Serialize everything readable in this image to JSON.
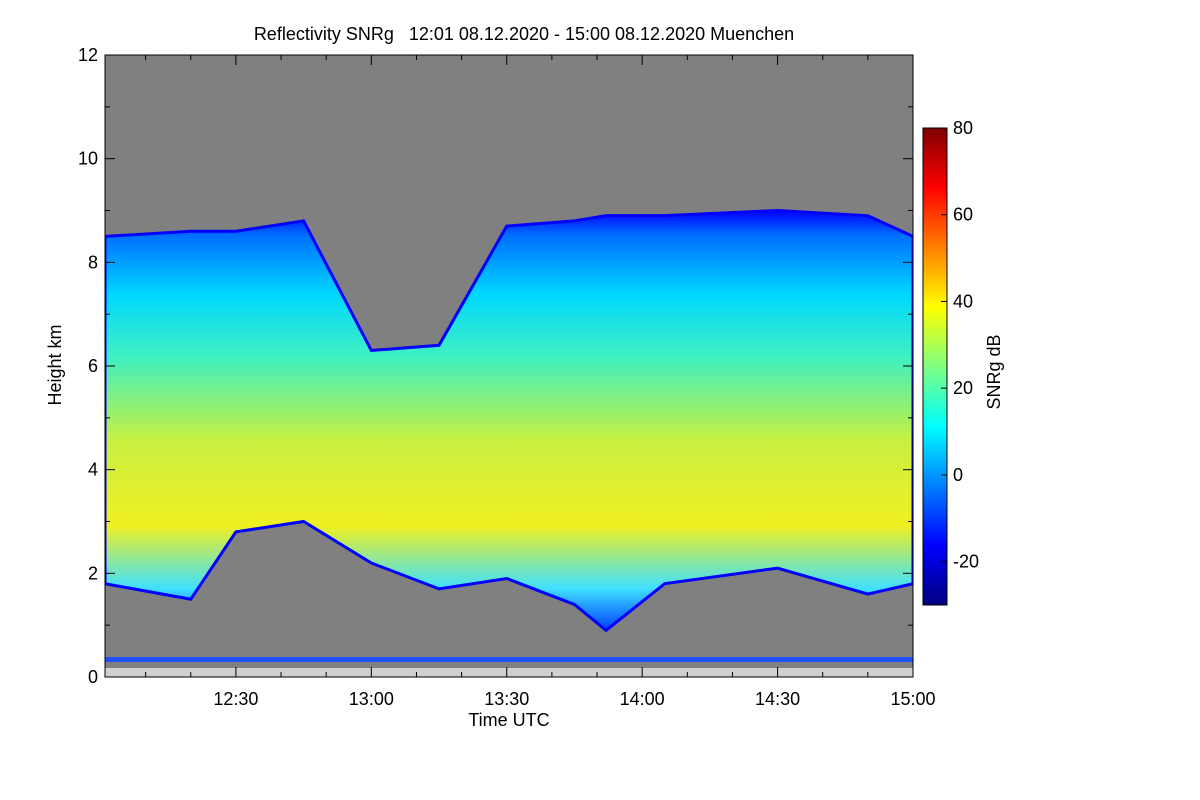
{
  "chart_data": {
    "type": "heatmap",
    "title": "Reflectivity SNRg   12:01 08.12.2020 - 15:00 08.12.2020 Muenchen",
    "xlabel": "Time UTC",
    "ylabel": "Height km",
    "x_range": [
      "12:01",
      "15:00"
    ],
    "x_ticks": [
      "12:30",
      "13:00",
      "13:30",
      "14:00",
      "14:30",
      "15:00"
    ],
    "y_range": [
      0,
      12
    ],
    "y_ticks": [
      "0",
      "2",
      "4",
      "6",
      "8",
      "10",
      "12"
    ],
    "colorbar": {
      "label": "SNRg dB",
      "range": [
        -30,
        80
      ],
      "ticks": [
        "-20",
        "0",
        "20",
        "40",
        "60",
        "80"
      ],
      "colors": [
        "#00007f",
        "#0000ff",
        "#007fff",
        "#00ffff",
        "#7fff7f",
        "#ffff00",
        "#ff7f00",
        "#ff0000",
        "#7f0000"
      ]
    },
    "no_signal_color": "#808080",
    "echo_profile_min": [
      {
        "time": "12:01",
        "base_km": 1.8,
        "top_km": 8.5
      },
      {
        "time": "12:20",
        "base_km": 1.5,
        "top_km": 8.6
      },
      {
        "time": "12:30",
        "base_km": 2.8,
        "top_km": 8.6
      },
      {
        "time": "12:45",
        "base_km": 3.0,
        "top_km": 8.8
      },
      {
        "time": "13:00",
        "base_km": 2.2,
        "top_km": 6.3
      },
      {
        "time": "13:15",
        "base_km": 1.7,
        "top_km": 6.4
      },
      {
        "time": "13:30",
        "base_km": 1.9,
        "top_km": 8.7
      },
      {
        "time": "13:45",
        "base_km": 1.4,
        "top_km": 8.8
      },
      {
        "time": "13:52",
        "base_km": 0.9,
        "top_km": 8.9
      },
      {
        "time": "14:05",
        "base_km": 1.8,
        "top_km": 8.9
      },
      {
        "time": "14:30",
        "base_km": 2.1,
        "top_km": 9.0
      },
      {
        "time": "14:50",
        "base_km": 1.6,
        "top_km": 8.9
      },
      {
        "time": "15:00",
        "base_km": 1.8,
        "top_km": 8.5
      }
    ]
  }
}
